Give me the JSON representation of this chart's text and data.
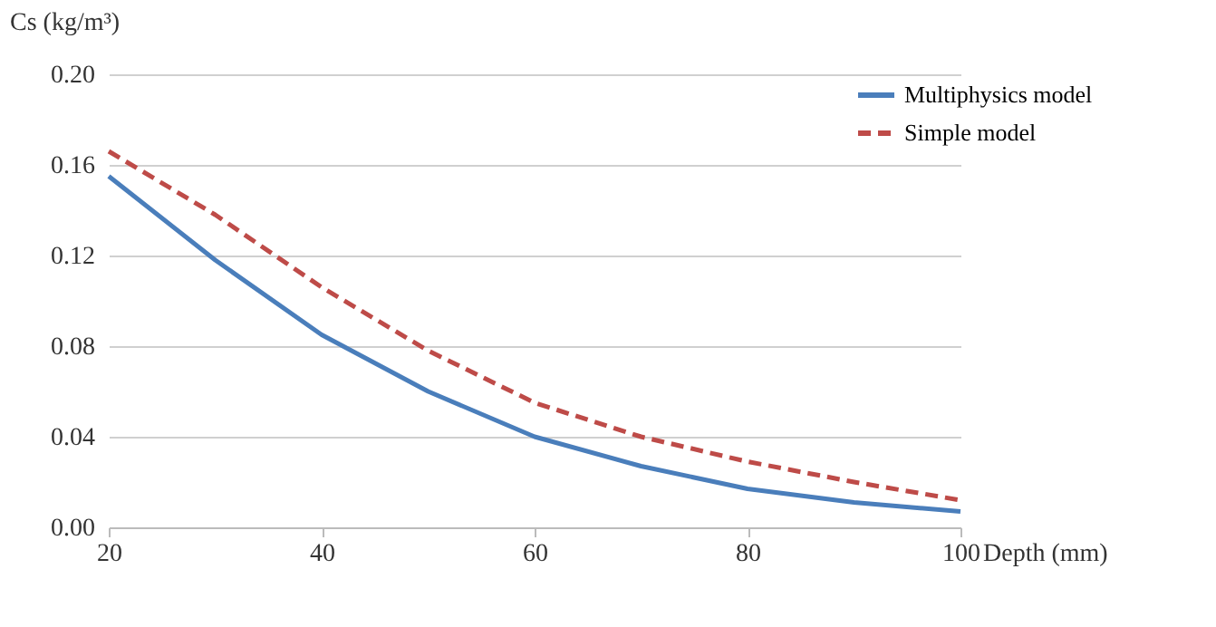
{
  "chart_data": {
    "type": "line",
    "xlabel": "Depth (mm)",
    "ylabel": "Cs (kg/m³)",
    "x": [
      20,
      30,
      40,
      50,
      60,
      70,
      80,
      90,
      100
    ],
    "series": [
      {
        "name": "Multiphysics model",
        "color": "#4a7ebb",
        "line_style": "solid",
        "values": [
          0.155,
          0.118,
          0.085,
          0.06,
          0.04,
          0.027,
          0.017,
          0.011,
          0.007
        ]
      },
      {
        "name": "Simple model",
        "color": "#be4b48",
        "line_style": "dashed",
        "values": [
          0.166,
          0.138,
          0.106,
          0.078,
          0.055,
          0.04,
          0.029,
          0.02,
          0.012
        ]
      }
    ],
    "xlim": [
      20,
      100
    ],
    "xticks": [
      20,
      40,
      60,
      80,
      100
    ],
    "ylim": [
      0,
      0.2
    ],
    "yticks": [
      {
        "value": 0,
        "label": "0.00"
      },
      {
        "value": 0.04,
        "label": "0.04"
      },
      {
        "value": 0.08,
        "label": "0.08"
      },
      {
        "value": 0.12,
        "label": "0.12"
      },
      {
        "value": 0.16,
        "label": "0.16"
      },
      {
        "value": 0.2,
        "label": "0.20"
      }
    ],
    "grid": "y",
    "legend": "right",
    "marker": "none"
  }
}
